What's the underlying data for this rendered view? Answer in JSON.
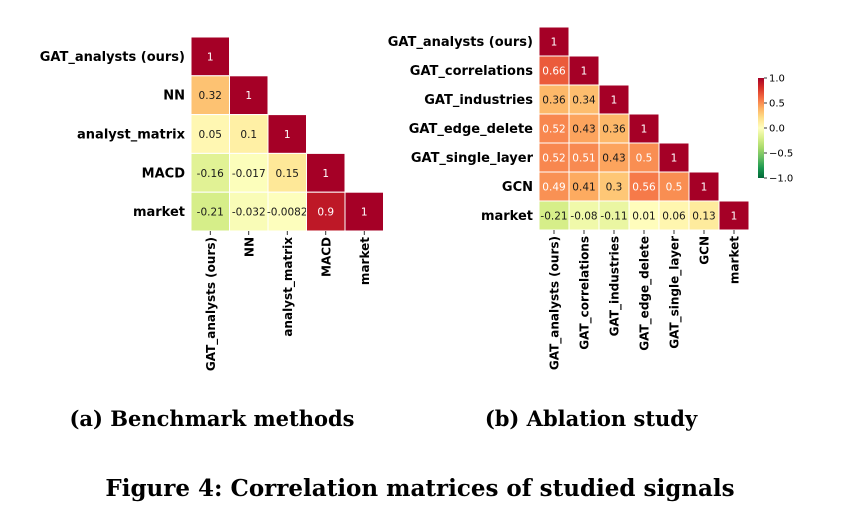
{
  "figure": {
    "caption": "Figure 4: Correlation matrices of studied signals"
  },
  "colorbar": {
    "ticks": [
      "1.0",
      "0.5",
      "0.0",
      "−0.5",
      "−1.0"
    ],
    "tick_values": [
      1.0,
      0.5,
      0.0,
      -0.5,
      -1.0
    ],
    "range": [
      -1,
      1
    ],
    "colormap": "RdYlGn_r"
  },
  "chart_data": [
    {
      "type": "heatmap",
      "title": "(a) Benchmark methods",
      "subtitle": "(a) Benchmark methods",
      "labels": [
        "GAT_analysts (ours)",
        "NN",
        "analyst_matrix",
        "MACD",
        "market"
      ],
      "cells": [
        [
          "1"
        ],
        [
          "0.32",
          "1"
        ],
        [
          "0.05",
          "0.1",
          "1"
        ],
        [
          "-0.16",
          "-0.017",
          "0.15",
          "1"
        ],
        [
          "-0.21",
          "-0.032",
          "-0.0082",
          "0.9",
          "1"
        ]
      ],
      "values": [
        [
          1
        ],
        [
          0.32,
          1
        ],
        [
          0.05,
          0.1,
          1
        ],
        [
          -0.16,
          -0.017,
          0.15,
          1
        ],
        [
          -0.21,
          -0.032,
          -0.0082,
          0.9,
          1
        ]
      ],
      "vmin": -1,
      "vmax": 1
    },
    {
      "type": "heatmap",
      "title": "(b) Ablation study",
      "subtitle": "(b) Ablation study",
      "labels": [
        "GAT_analysts (ours)",
        "GAT_correlations",
        "GAT_industries",
        "GAT_edge_delete",
        "GAT_single_layer",
        "GCN",
        "market"
      ],
      "cells": [
        [
          "1"
        ],
        [
          "0.66",
          "1"
        ],
        [
          "0.36",
          "0.34",
          "1"
        ],
        [
          "0.52",
          "0.43",
          "0.36",
          "1"
        ],
        [
          "0.52",
          "0.51",
          "0.43",
          "0.5",
          "1"
        ],
        [
          "0.49",
          "0.41",
          "0.3",
          "0.56",
          "0.5",
          "1"
        ],
        [
          "-0.21",
          "-0.08",
          "-0.11",
          "0.01",
          "0.06",
          "0.13",
          "1"
        ]
      ],
      "values": [
        [
          1
        ],
        [
          0.66,
          1
        ],
        [
          0.36,
          0.34,
          1
        ],
        [
          0.52,
          0.43,
          0.36,
          1
        ],
        [
          0.52,
          0.51,
          0.43,
          0.5,
          1
        ],
        [
          0.49,
          0.41,
          0.3,
          0.56,
          0.5,
          1
        ],
        [
          -0.21,
          -0.08,
          -0.11,
          0.01,
          0.06,
          0.13,
          1
        ]
      ],
      "vmin": -1,
      "vmax": 1
    }
  ]
}
